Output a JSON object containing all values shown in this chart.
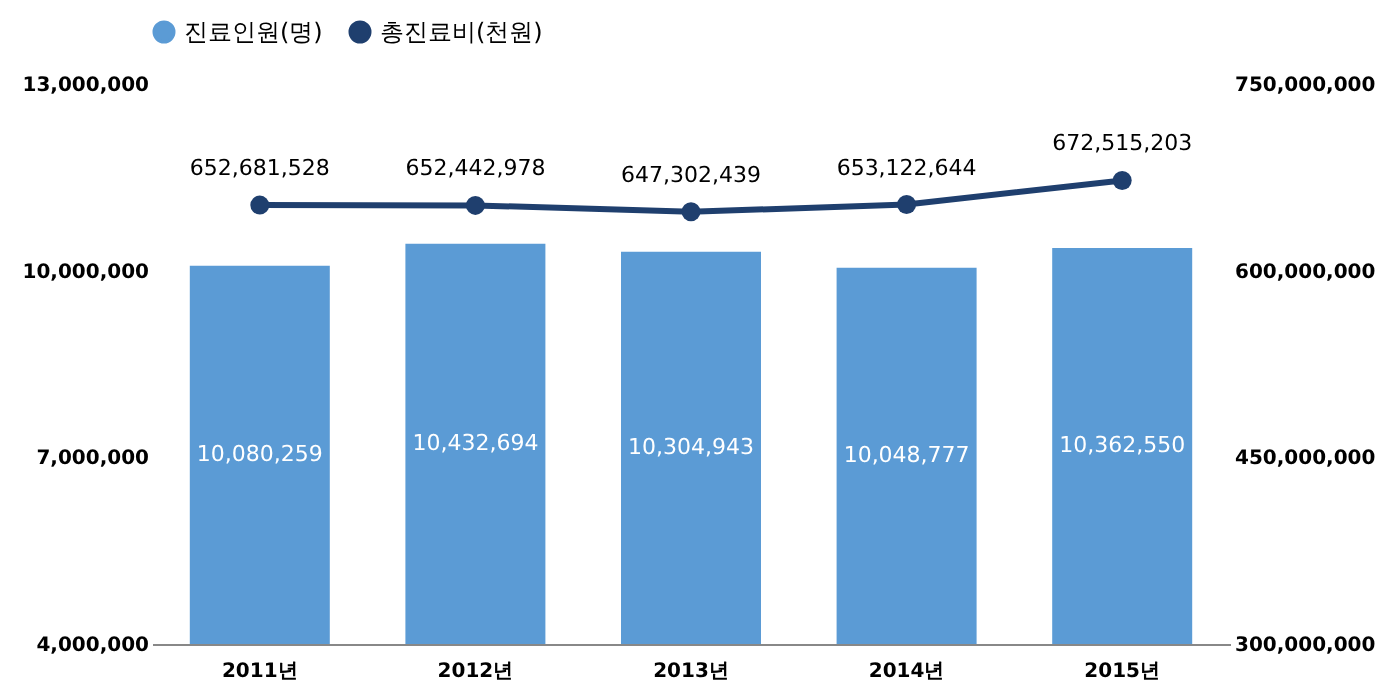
{
  "chart_data": {
    "type": "bar",
    "categories": [
      "2011년",
      "2012년",
      "2013년",
      "2014년",
      "2015년"
    ],
    "series": [
      {
        "name": "진료인원(명)",
        "color": "#5b9bd5",
        "values": [
          10080259,
          10432694,
          10304943,
          10048777,
          10362550
        ],
        "value_labels": [
          "10,080,259",
          "10,432,694",
          "10,304,943",
          "10,048,777",
          "10,362,550"
        ]
      },
      {
        "name": "총진료비(천원)",
        "type": "line",
        "axis": "y2",
        "color": "#1f3f6e",
        "marker": "circle",
        "values": [
          652681528,
          652442978,
          647302439,
          653122644,
          672515203
        ],
        "value_labels": [
          "652,681,528",
          "652,442,978",
          "647,302,439",
          "653,122,644",
          "672,515,203"
        ]
      }
    ],
    "ylim": [
      4000000,
      13000000
    ],
    "yticks": [
      {
        "value": 4000000,
        "label": "4,000,000"
      },
      {
        "value": 7000000,
        "label": "7,000,000"
      },
      {
        "value": 10000000,
        "label": "10,000,000"
      },
      {
        "value": 13000000,
        "label": "13,000,000"
      }
    ],
    "y2lim": [
      300000000,
      750000000
    ],
    "y2ticks": [
      {
        "value": 300000000,
        "label": "300,000,000"
      },
      {
        "value": 450000000,
        "label": "450,000,000"
      },
      {
        "value": 600000000,
        "label": "600,000,000"
      },
      {
        "value": 750000000,
        "label": "750,000,000"
      }
    ],
    "legend": "top",
    "grid": false
  }
}
